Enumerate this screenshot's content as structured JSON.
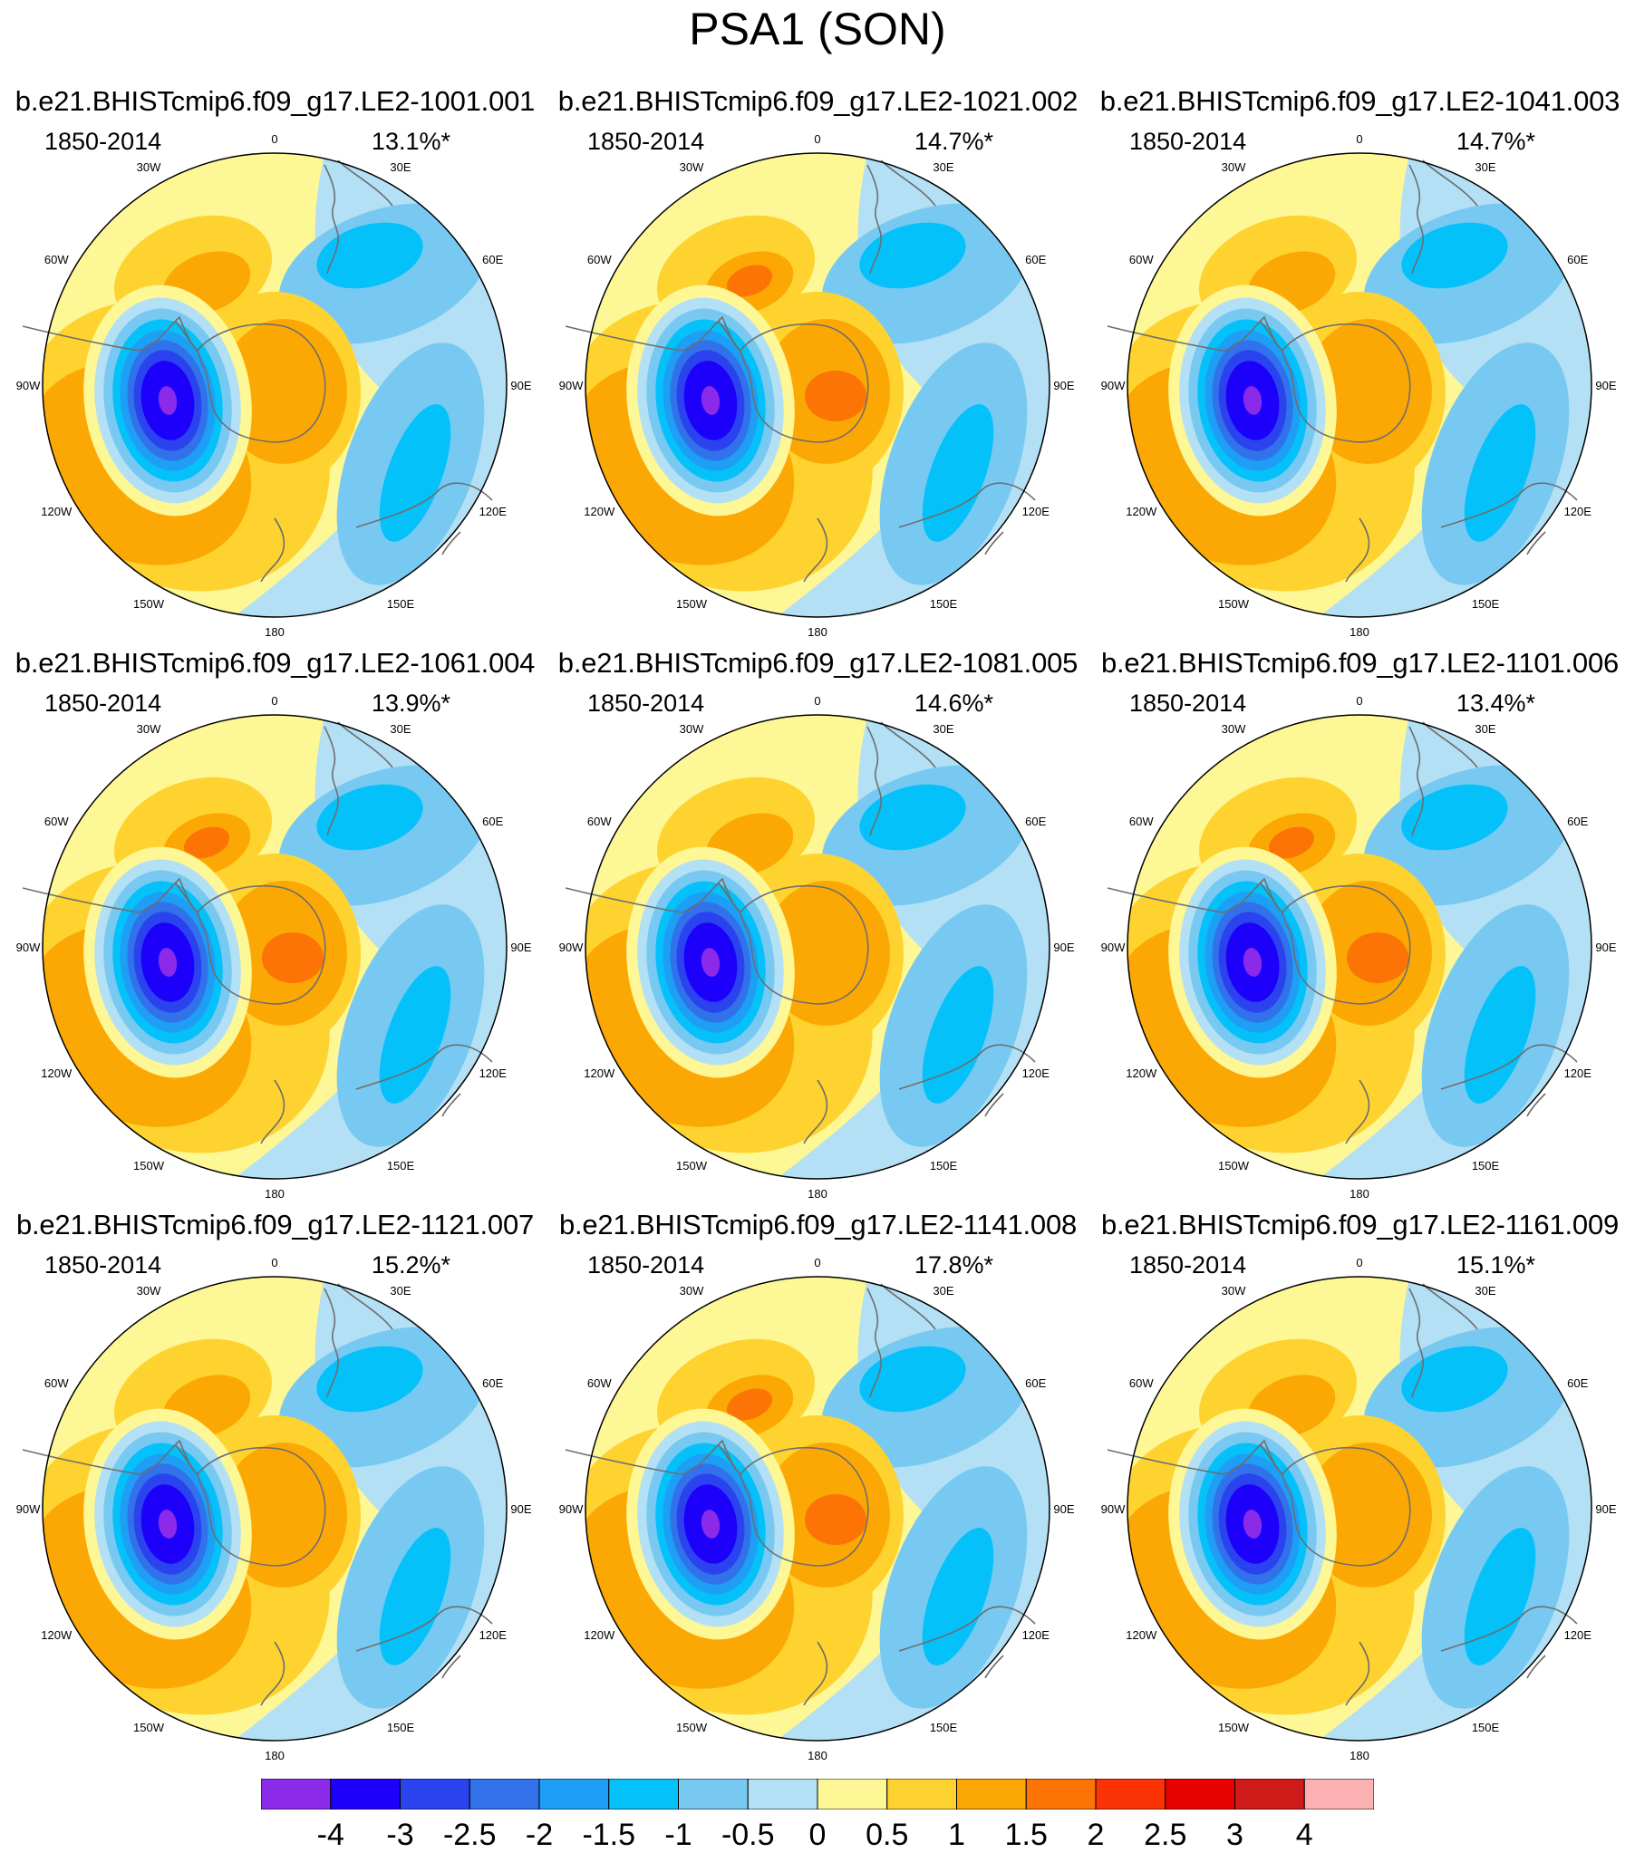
{
  "title": "PSA1 (SON)",
  "panels": [
    {
      "name": "b.e21.BHISTcmip6.f09_g17.LE2-1001.001",
      "years": "1850-2014",
      "pct": "13.1%*"
    },
    {
      "name": "b.e21.BHISTcmip6.f09_g17.LE2-1021.002",
      "years": "1850-2014",
      "pct": "14.7%*"
    },
    {
      "name": "b.e21.BHISTcmip6.f09_g17.LE2-1041.003",
      "years": "1850-2014",
      "pct": "14.7%*"
    },
    {
      "name": "b.e21.BHISTcmip6.f09_g17.LE2-1061.004",
      "years": "1850-2014",
      "pct": "13.9%*"
    },
    {
      "name": "b.e21.BHISTcmip6.f09_g17.LE2-1081.005",
      "years": "1850-2014",
      "pct": "14.6%*"
    },
    {
      "name": "b.e21.BHISTcmip6.f09_g17.LE2-1101.006",
      "years": "1850-2014",
      "pct": "13.4%*"
    },
    {
      "name": "b.e21.BHISTcmip6.f09_g17.LE2-1121.007",
      "years": "1850-2014",
      "pct": "15.2%*"
    },
    {
      "name": "b.e21.BHISTcmip6.f09_g17.LE2-1141.008",
      "years": "1850-2014",
      "pct": "17.8%*"
    },
    {
      "name": "b.e21.BHISTcmip6.f09_g17.LE2-1161.009",
      "years": "1850-2014",
      "pct": "15.1%*"
    }
  ],
  "lon_labels": [
    "0",
    "30E",
    "60E",
    "90E",
    "120E",
    "150E",
    "180",
    "150W",
    "120W",
    "90W",
    "60W",
    "30W"
  ],
  "colorbar": {
    "colors": [
      "#8b2be9",
      "#1d00fa",
      "#2a43ef",
      "#3172ea",
      "#1e9ef4",
      "#04c1fa",
      "#78c9f2",
      "#b3e0f4",
      "#fdf796",
      "#fed330",
      "#fca804",
      "#fc7405",
      "#fc3304",
      "#e70202",
      "#cf1a1a",
      "#fbb1b2"
    ],
    "labels": [
      "-4",
      "-3",
      "-2.5",
      "-2",
      "-1.5",
      "-1",
      "-0.5",
      "0",
      "0.5",
      "1",
      "1.5",
      "2",
      "2.5",
      "3",
      "4"
    ]
  }
}
